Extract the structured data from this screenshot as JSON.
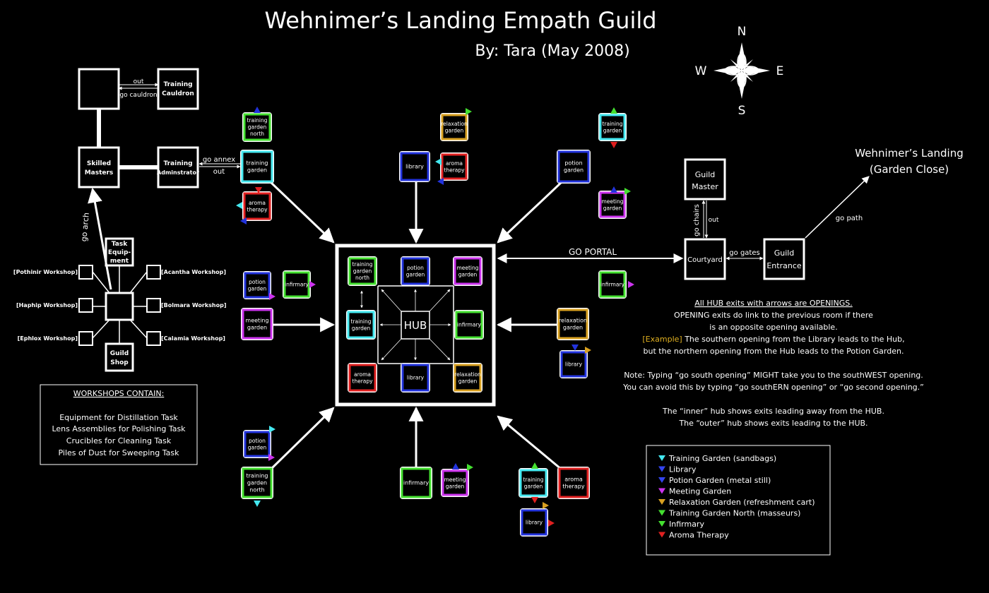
{
  "title": "Wehnimer’s Landing Empath Guild",
  "byline": "By: Tara (May 2008)",
  "compass": {
    "n": "N",
    "s": "S",
    "e": "E",
    "w": "W"
  },
  "colors": {
    "training_garden": "#44e8f0",
    "library": "#2233dd",
    "potion_garden": "#2233dd",
    "meeting_garden": "#cc33ee",
    "relaxation_garden": "#d8a020",
    "training_garden_north": "#44e030",
    "infirmary": "#44e030",
    "aroma_therapy": "#e02020"
  },
  "guild": {
    "training_cauldron": "Training Cauldron",
    "skilled_masters": "Skilled Masters",
    "training_admin": "Training Adminstrator",
    "task_equipment": "Task Equipment",
    "guild_shop": "Guild Shop",
    "out": "out",
    "go_cauldron": "go cauldron",
    "go_annex": "go annex",
    "out2": "out",
    "go_arch": "go arch"
  },
  "workshops": [
    "[Pothinir Workshop]",
    "[Acantha Workshop]",
    "[Haphip Workshop]",
    "[Bolmara Workshop]",
    "[Ephlox Workshop]",
    "[Calamia Workshop]"
  ],
  "workshops_box": {
    "heading": "WORKSHOPS CONTAIN:",
    "lines": [
      "Equipment for Distillation Task",
      "Lens Assemblies for Polishing Task",
      "Crucibles for Cleaning Task",
      "Piles of Dust for Sweeping Task"
    ]
  },
  "hub": {
    "center": "HUB",
    "inner": {
      "tgn": "training garden north",
      "potion": "potion garden",
      "meeting": "meeting garden",
      "training": "training garden",
      "infirmary": "infirmary",
      "aroma": "aroma therapy",
      "library": "library",
      "relax": "relaxation garden"
    }
  },
  "outer": {
    "tgn_nw": "training garden north",
    "tg_nw": "training garden",
    "aroma_nw": "aroma therapy",
    "library_n": "library",
    "relax_n": "relaxation garden",
    "aroma_n": "aroma therapy",
    "potion_ne": "potion garden",
    "tg_ne": "training garden",
    "meeting_ne": "meeting garden",
    "potion_w": "potion garden",
    "infirmary_w": "infirmary",
    "meeting_w": "meeting garden",
    "infirmary_e": "infirmary",
    "relax_e": "relaxation garden",
    "library_e": "library",
    "potion_sw": "potion garden",
    "tgn_sw": "training garden north",
    "infirmary_s": "infirmary",
    "meeting_s": "meeting garden",
    "tg_se": "training garden",
    "aroma_se": "aroma therapy",
    "library_se": "library"
  },
  "right": {
    "go_portal": "GO PORTAL",
    "courtyard": "Courtyard",
    "guild_master": "Guild Master",
    "guild_entrance": "Guild Entrance",
    "go_chairs": "go chairs",
    "out": "out",
    "go_gates": "go gates",
    "go_path": "go path",
    "landing_line1": "Wehnimer’s Landing",
    "landing_line2": "(Garden Close)"
  },
  "notes": {
    "line1": "All HUB exits with arrows are OPENINGS.",
    "line2": "OPENING exits do link to the previous room if there",
    "line3": "is an opposite opening available.",
    "example_label": "[Example]",
    "line4": " The southern opening from the Library leads to the Hub,",
    "line5": "but the northern opening from the Hub leads to the Potion Garden.",
    "line6": "Note: Typing “go south opening” MIGHT take you to the southWEST opening.",
    "line7": "You can avoid this by typing “go southERN opening” or “go second opening.”",
    "line8": "The “inner” hub shows exits leading away from the HUB.",
    "line9": "The “outer” hub shows exits leading to the HUB."
  },
  "legend": [
    {
      "color": "#44e8f0",
      "label": "Training Garden (sandbags)"
    },
    {
      "color": "#3344ee",
      "label": "Library"
    },
    {
      "color": "#3344ee",
      "label": "Potion Garden (metal still)"
    },
    {
      "color": "#cc33ee",
      "label": "Meeting Garden"
    },
    {
      "color": "#d8a020",
      "label": "Relaxation Garden (refreshment cart)"
    },
    {
      "color": "#44e030",
      "label": "Training Garden North (masseurs)"
    },
    {
      "color": "#44e030",
      "label": "Infirmary"
    },
    {
      "color": "#e02020",
      "label": "Aroma Therapy"
    }
  ]
}
